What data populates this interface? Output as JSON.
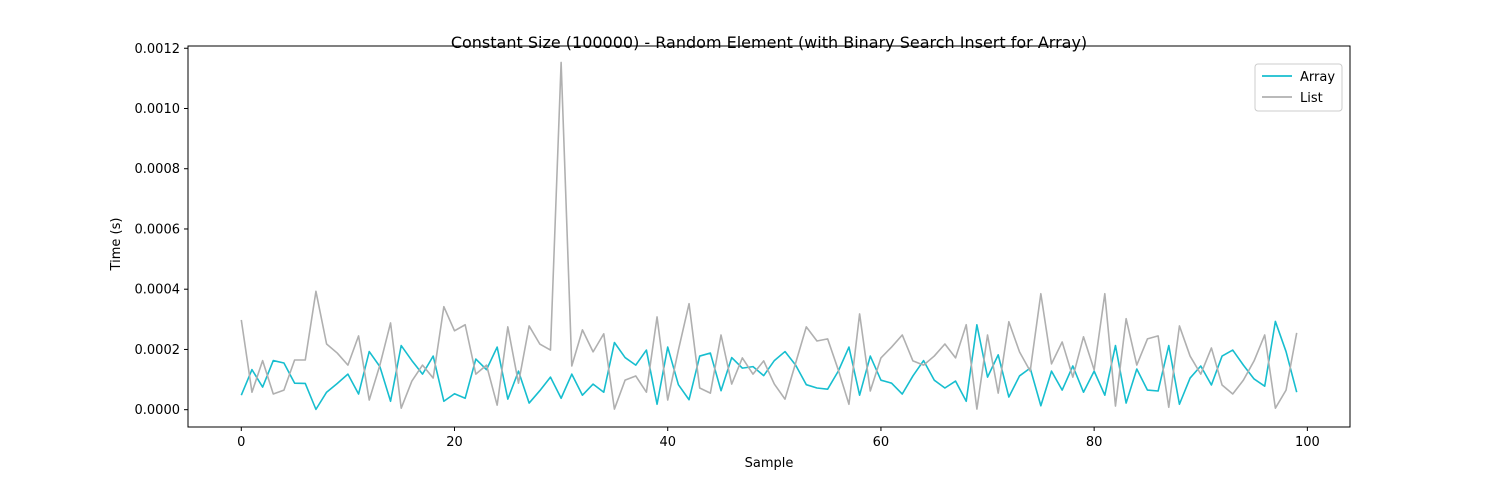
{
  "chart_data": {
    "type": "line",
    "title": "Constant Size (100000) - Random Element (with Binary Search Insert for Array)",
    "xlabel": "Sample",
    "ylabel": "Time (s)",
    "xlim": [
      -5,
      104
    ],
    "ylim": [
      -5.75e-05,
      0.0012075
    ],
    "xticks": [
      0,
      20,
      40,
      60,
      80,
      100
    ],
    "xtick_labels": [
      "0",
      "20",
      "40",
      "60",
      "80",
      "100"
    ],
    "yticks": [
      0,
      0.0002,
      0.0004,
      0.0006,
      0.0008,
      0.001,
      0.0012
    ],
    "ytick_labels": [
      "0.0000",
      "0.0002",
      "0.0004",
      "0.0006",
      "0.0008",
      "0.0010",
      "0.0012"
    ],
    "grid": false,
    "legend_position": "top-right",
    "x": [
      0,
      1,
      2,
      3,
      4,
      5,
      6,
      7,
      8,
      9,
      10,
      11,
      12,
      13,
      14,
      15,
      16,
      17,
      18,
      19,
      20,
      21,
      22,
      23,
      24,
      25,
      26,
      27,
      28,
      29,
      30,
      31,
      32,
      33,
      34,
      35,
      36,
      37,
      38,
      39,
      40,
      41,
      42,
      43,
      44,
      45,
      46,
      47,
      48,
      49,
      50,
      51,
      52,
      53,
      54,
      55,
      56,
      57,
      58,
      59,
      60,
      61,
      62,
      63,
      64,
      65,
      66,
      67,
      68,
      69,
      70,
      71,
      72,
      73,
      74,
      75,
      76,
      77,
      78,
      79,
      80,
      81,
      82,
      83,
      84,
      85,
      86,
      87,
      88,
      89,
      90,
      91,
      92,
      93,
      94,
      95,
      96,
      97,
      98,
      99
    ],
    "series": [
      {
        "name": "Array",
        "color": "#17becf",
        "values": [
          4.8e-05,
          0.000133,
          7.5e-05,
          0.000163,
          0.000155,
          8.8e-05,
          8.7e-05,
          1e-06,
          5.8e-05,
          8.7e-05,
          0.000118,
          5.2e-05,
          0.000193,
          0.000143,
          2.8e-05,
          0.000213,
          0.000163,
          0.000118,
          0.000178,
          2.8e-05,
          5.3e-05,
          3.8e-05,
          0.000168,
          0.000133,
          0.000208,
          3.5e-05,
          0.000128,
          2.2e-05,
          6.3e-05,
          0.000108,
          3.8e-05,
          0.000118,
          4.8e-05,
          8.5e-05,
          5.8e-05,
          0.000223,
          0.000173,
          0.000148,
          0.000198,
          1.8e-05,
          0.000208,
          8.3e-05,
          3.3e-05,
          0.000178,
          0.000188,
          6.3e-05,
          0.000173,
          0.000138,
          0.000143,
          0.000113,
          0.000163,
          0.000193,
          0.000148,
          8.3e-05,
          7.2e-05,
          6.8e-05,
          0.000128,
          0.000208,
          4.8e-05,
          0.000178,
          9.8e-05,
          8.8e-05,
          5.2e-05,
          0.000112,
          0.000163,
          9.8e-05,
          7.2e-05,
          9.5e-05,
          2.8e-05,
          0.000282,
          0.000108,
          0.000182,
          4.2e-05,
          0.000112,
          0.000138,
          1.3e-05,
          0.000128,
          6.5e-05,
          0.000145,
          5.8e-05,
          0.000128,
          4.8e-05,
          0.000213,
          2.2e-05,
          0.000135,
          6.5e-05,
          6.2e-05,
          0.000213,
          1.8e-05,
          0.000105,
          0.000145,
          8.2e-05,
          0.000178,
          0.000198,
          0.000148,
          0.000102,
          7.8e-05,
          0.000293,
          0.000193,
          5.8e-05
        ]
      },
      {
        "name": "List",
        "color": "#b0b0b0",
        "values": [
          0.000298,
          5.8e-05,
          0.000163,
          5.2e-05,
          6.5e-05,
          0.000165,
          0.000165,
          0.000393,
          0.000218,
          0.000188,
          0.000148,
          0.000245,
          3.2e-05,
          0.000148,
          0.000288,
          5e-06,
          9.5e-05,
          0.000148,
          0.000105,
          0.000342,
          0.000262,
          0.000282,
          0.000118,
          0.000148,
          1.5e-05,
          0.000275,
          8.8e-05,
          0.000278,
          0.000218,
          0.000198,
          0.001153,
          0.000145,
          0.000265,
          0.000192,
          0.000252,
          2e-06,
          9.8e-05,
          0.000112,
          5.8e-05,
          0.000308,
          3.2e-05,
          0.000198,
          0.000352,
          7.2e-05,
          5.5e-05,
          0.000248,
          8.5e-05,
          0.000172,
          0.000118,
          0.000162,
          8.5e-05,
          3.5e-05,
          0.000155,
          0.000275,
          0.000228,
          0.000235,
          0.000132,
          1.8e-05,
          0.000318,
          6.2e-05,
          0.000172,
          0.000208,
          0.000248,
          0.000162,
          0.000148,
          0.000178,
          0.000218,
          0.000172,
          0.000282,
          2e-06,
          0.000248,
          5.5e-05,
          0.000292,
          0.000192,
          0.000128,
          0.000385,
          0.000152,
          0.000225,
          0.000108,
          0.000242,
          0.000132,
          0.000385,
          1.2e-05,
          0.000302,
          0.000148,
          0.000235,
          0.000245,
          8e-06,
          0.000278,
          0.000178,
          0.000118,
          0.000205,
          8.2e-05,
          5.2e-05,
          9.8e-05,
          0.000162,
          0.000248,
          5e-06,
          6.5e-05,
          0.000255
        ]
      }
    ]
  }
}
